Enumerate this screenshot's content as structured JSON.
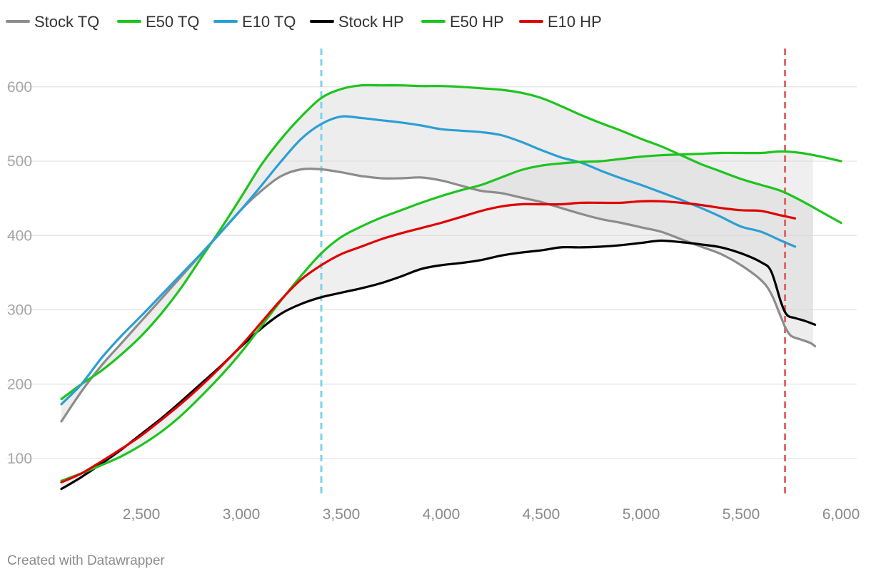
{
  "chart_data": {
    "type": "line",
    "xlim": [
      2000,
      6000
    ],
    "ylim": [
      45,
      650
    ],
    "yticks": [
      100,
      200,
      300,
      400,
      500,
      600
    ],
    "xticks": [
      2500,
      3000,
      3500,
      4000,
      4500,
      5000,
      5500,
      6000
    ],
    "ytick_labels": [
      "100",
      "200",
      "300",
      "400",
      "500",
      "600"
    ],
    "xtick_labels": [
      "2,500",
      "3,000",
      "3,500",
      "4,000",
      "4,500",
      "5,000",
      "5,500",
      "6,000"
    ],
    "grid": "horizontal",
    "legend_position": "top-left",
    "vlines": [
      {
        "x": 3400,
        "color": "#7fd3ec"
      },
      {
        "x": 5720,
        "color": "#e06666"
      }
    ],
    "bands": [
      {
        "lower": "Stock TQ",
        "upper": "E50 TQ",
        "color": "#d6d6d6",
        "opacity": 0.45
      },
      {
        "lower": "Stock HP",
        "upper": "E50 HP",
        "color": "#d6d6d6",
        "opacity": 0.4
      }
    ],
    "series": [
      {
        "name": "Stock TQ",
        "color": "#8c8c8c",
        "points": [
          [
            2100,
            150
          ],
          [
            2200,
            190
          ],
          [
            2300,
            225
          ],
          [
            2400,
            255
          ],
          [
            2500,
            285
          ],
          [
            2600,
            315
          ],
          [
            2700,
            345
          ],
          [
            2800,
            375
          ],
          [
            2900,
            405
          ],
          [
            3000,
            435
          ],
          [
            3100,
            460
          ],
          [
            3200,
            480
          ],
          [
            3300,
            489
          ],
          [
            3400,
            489
          ],
          [
            3500,
            485
          ],
          [
            3600,
            480
          ],
          [
            3700,
            477
          ],
          [
            3800,
            477
          ],
          [
            3900,
            478
          ],
          [
            4000,
            474
          ],
          [
            4100,
            467
          ],
          [
            4200,
            460
          ],
          [
            4300,
            457
          ],
          [
            4400,
            451
          ],
          [
            4500,
            445
          ],
          [
            4600,
            437
          ],
          [
            4700,
            429
          ],
          [
            4800,
            422
          ],
          [
            4900,
            417
          ],
          [
            5000,
            411
          ],
          [
            5100,
            405
          ],
          [
            5200,
            395
          ],
          [
            5300,
            385
          ],
          [
            5400,
            375
          ],
          [
            5500,
            360
          ],
          [
            5600,
            340
          ],
          [
            5650,
            322
          ],
          [
            5700,
            290
          ],
          [
            5720,
            277
          ],
          [
            5750,
            265
          ],
          [
            5800,
            260
          ],
          [
            5850,
            255
          ],
          [
            5870,
            251
          ]
        ]
      },
      {
        "name": "E50 TQ",
        "color": "#1ec41e",
        "points": [
          [
            2100,
            180
          ],
          [
            2200,
            200
          ],
          [
            2300,
            218
          ],
          [
            2400,
            240
          ],
          [
            2500,
            265
          ],
          [
            2600,
            295
          ],
          [
            2700,
            330
          ],
          [
            2800,
            370
          ],
          [
            2900,
            410
          ],
          [
            3000,
            452
          ],
          [
            3100,
            495
          ],
          [
            3200,
            530
          ],
          [
            3300,
            560
          ],
          [
            3400,
            585
          ],
          [
            3500,
            597
          ],
          [
            3600,
            602
          ],
          [
            3700,
            602
          ],
          [
            3800,
            602
          ],
          [
            3900,
            601
          ],
          [
            4000,
            601
          ],
          [
            4100,
            600
          ],
          [
            4200,
            598
          ],
          [
            4300,
            596
          ],
          [
            4400,
            592
          ],
          [
            4500,
            585
          ],
          [
            4600,
            574
          ],
          [
            4700,
            562
          ],
          [
            4800,
            551
          ],
          [
            4900,
            541
          ],
          [
            5000,
            530
          ],
          [
            5100,
            520
          ],
          [
            5200,
            508
          ],
          [
            5300,
            496
          ],
          [
            5400,
            486
          ],
          [
            5500,
            476
          ],
          [
            5600,
            468
          ],
          [
            5700,
            460
          ],
          [
            5800,
            447
          ],
          [
            5900,
            432
          ],
          [
            6000,
            417
          ]
        ]
      },
      {
        "name": "E10 TQ",
        "color": "#2b9fd4",
        "points": [
          [
            2100,
            173
          ],
          [
            2200,
            200
          ],
          [
            2300,
            235
          ],
          [
            2400,
            265
          ],
          [
            2500,
            292
          ],
          [
            2600,
            320
          ],
          [
            2700,
            348
          ],
          [
            2800,
            376
          ],
          [
            2900,
            405
          ],
          [
            3000,
            435
          ],
          [
            3100,
            467
          ],
          [
            3200,
            500
          ],
          [
            3300,
            530
          ],
          [
            3400,
            550
          ],
          [
            3500,
            560
          ],
          [
            3600,
            558
          ],
          [
            3700,
            555
          ],
          [
            3800,
            552
          ],
          [
            3900,
            548
          ],
          [
            4000,
            543
          ],
          [
            4100,
            541
          ],
          [
            4200,
            539
          ],
          [
            4300,
            535
          ],
          [
            4400,
            526
          ],
          [
            4500,
            515
          ],
          [
            4600,
            505
          ],
          [
            4700,
            498
          ],
          [
            4800,
            487
          ],
          [
            4900,
            477
          ],
          [
            5000,
            468
          ],
          [
            5100,
            458
          ],
          [
            5200,
            448
          ],
          [
            5300,
            437
          ],
          [
            5400,
            425
          ],
          [
            5500,
            412
          ],
          [
            5600,
            405
          ],
          [
            5700,
            393
          ],
          [
            5770,
            385
          ]
        ]
      },
      {
        "name": "Stock HP",
        "color": "#000000",
        "points": [
          [
            2100,
            59
          ],
          [
            2200,
            75
          ],
          [
            2300,
            93
          ],
          [
            2400,
            112
          ],
          [
            2500,
            133
          ],
          [
            2600,
            154
          ],
          [
            2700,
            177
          ],
          [
            2800,
            201
          ],
          [
            2900,
            225
          ],
          [
            3000,
            251
          ],
          [
            3100,
            275
          ],
          [
            3200,
            295
          ],
          [
            3300,
            308
          ],
          [
            3400,
            317
          ],
          [
            3500,
            323
          ],
          [
            3600,
            329
          ],
          [
            3700,
            336
          ],
          [
            3800,
            345
          ],
          [
            3900,
            355
          ],
          [
            4000,
            360
          ],
          [
            4100,
            363
          ],
          [
            4200,
            367
          ],
          [
            4300,
            373
          ],
          [
            4400,
            377
          ],
          [
            4500,
            380
          ],
          [
            4600,
            384
          ],
          [
            4700,
            384
          ],
          [
            4800,
            385
          ],
          [
            4900,
            387
          ],
          [
            5000,
            390
          ],
          [
            5100,
            393
          ],
          [
            5200,
            391
          ],
          [
            5300,
            388
          ],
          [
            5400,
            384
          ],
          [
            5500,
            376
          ],
          [
            5600,
            364
          ],
          [
            5650,
            352
          ],
          [
            5700,
            310
          ],
          [
            5730,
            293
          ],
          [
            5770,
            289
          ],
          [
            5820,
            285
          ],
          [
            5870,
            280
          ]
        ]
      },
      {
        "name": "E50 HP",
        "color": "#1ec41e",
        "points": [
          [
            2100,
            70
          ],
          [
            2200,
            80
          ],
          [
            2300,
            91
          ],
          [
            2400,
            103
          ],
          [
            2500,
            118
          ],
          [
            2600,
            136
          ],
          [
            2700,
            158
          ],
          [
            2800,
            184
          ],
          [
            2900,
            212
          ],
          [
            3000,
            243
          ],
          [
            3100,
            278
          ],
          [
            3200,
            313
          ],
          [
            3300,
            346
          ],
          [
            3400,
            376
          ],
          [
            3500,
            398
          ],
          [
            3600,
            412
          ],
          [
            3700,
            424
          ],
          [
            3800,
            434
          ],
          [
            3900,
            444
          ],
          [
            4000,
            453
          ],
          [
            4100,
            461
          ],
          [
            4200,
            468
          ],
          [
            4300,
            478
          ],
          [
            4400,
            488
          ],
          [
            4500,
            494
          ],
          [
            4600,
            497
          ],
          [
            4700,
            499
          ],
          [
            4800,
            500
          ],
          [
            4900,
            503
          ],
          [
            5000,
            506
          ],
          [
            5100,
            508
          ],
          [
            5200,
            509
          ],
          [
            5300,
            510
          ],
          [
            5400,
            511
          ],
          [
            5500,
            511
          ],
          [
            5600,
            511
          ],
          [
            5700,
            513
          ],
          [
            5800,
            511
          ],
          [
            5900,
            506
          ],
          [
            6000,
            500
          ]
        ]
      },
      {
        "name": "E10 HP",
        "color": "#e00000",
        "points": [
          [
            2100,
            68
          ],
          [
            2200,
            80
          ],
          [
            2300,
            96
          ],
          [
            2400,
            113
          ],
          [
            2500,
            131
          ],
          [
            2600,
            152
          ],
          [
            2700,
            174
          ],
          [
            2800,
            198
          ],
          [
            2900,
            224
          ],
          [
            3000,
            252
          ],
          [
            3100,
            283
          ],
          [
            3200,
            314
          ],
          [
            3300,
            341
          ],
          [
            3400,
            360
          ],
          [
            3500,
            375
          ],
          [
            3600,
            385
          ],
          [
            3700,
            395
          ],
          [
            3800,
            403
          ],
          [
            3900,
            410
          ],
          [
            4000,
            417
          ],
          [
            4100,
            425
          ],
          [
            4200,
            433
          ],
          [
            4300,
            439
          ],
          [
            4400,
            442
          ],
          [
            4500,
            442
          ],
          [
            4600,
            442
          ],
          [
            4700,
            444
          ],
          [
            4800,
            444
          ],
          [
            4900,
            444
          ],
          [
            5000,
            446
          ],
          [
            5100,
            446
          ],
          [
            5200,
            444
          ],
          [
            5300,
            441
          ],
          [
            5400,
            437
          ],
          [
            5500,
            434
          ],
          [
            5600,
            433
          ],
          [
            5700,
            427
          ],
          [
            5770,
            423
          ]
        ]
      }
    ]
  },
  "footer": {
    "credit": "Created with Datawrapper"
  }
}
